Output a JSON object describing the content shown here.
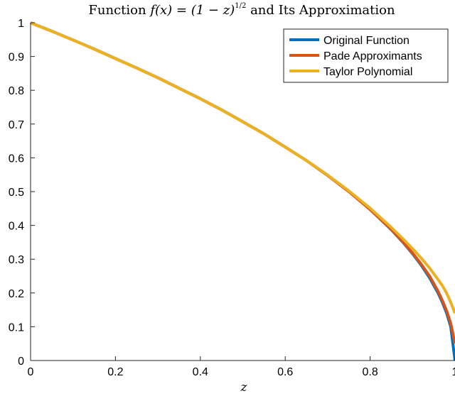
{
  "chart_data": {
    "type": "line",
    "title": "Function f(x) = (1 − z)^(1/2) and Its Approximation",
    "title_parts": {
      "prefix": "Function ",
      "math": "f(x) = (1 − z)",
      "exp_num": "1",
      "exp_den": "2",
      "suffix": " and Its Approximation"
    },
    "xlabel": "z",
    "ylabel": "",
    "xlim": [
      0,
      1
    ],
    "ylim": [
      0,
      1
    ],
    "x_ticks": [
      0,
      0.2,
      0.4,
      0.6,
      0.8,
      1
    ],
    "x_tick_labels": [
      "0",
      "0.2",
      "0.4",
      "0.6",
      "0.8",
      "1"
    ],
    "y_ticks": [
      0,
      0.1,
      0.2,
      0.3,
      0.4,
      0.5,
      0.6,
      0.7,
      0.8,
      0.9,
      1
    ],
    "y_tick_labels": [
      "0",
      "0.1",
      "0.2",
      "0.3",
      "0.4",
      "0.5",
      "0.6",
      "0.7",
      "0.8",
      "0.9",
      "1"
    ],
    "grid": false,
    "legend": "top-right",
    "x": [
      0,
      0.05,
      0.1,
      0.15,
      0.2,
      0.25,
      0.3,
      0.35,
      0.4,
      0.45,
      0.5,
      0.55,
      0.6,
      0.65,
      0.7,
      0.75,
      0.8,
      0.85,
      0.88,
      0.9,
      0.92,
      0.94,
      0.96,
      0.97,
      0.98,
      0.99,
      1.0
    ],
    "series": [
      {
        "name": "Original Function",
        "color": "#0072BD",
        "values": [
          1.0,
          0.975,
          0.949,
          0.922,
          0.894,
          0.866,
          0.837,
          0.806,
          0.775,
          0.742,
          0.707,
          0.671,
          0.632,
          0.592,
          0.548,
          0.5,
          0.447,
          0.387,
          0.346,
          0.316,
          0.283,
          0.245,
          0.2,
          0.173,
          0.141,
          0.1,
          0.0
        ]
      },
      {
        "name": "Pade Approximants",
        "color": "#D95319",
        "values": [
          1.0,
          0.975,
          0.949,
          0.922,
          0.894,
          0.866,
          0.837,
          0.806,
          0.775,
          0.742,
          0.707,
          0.671,
          0.632,
          0.592,
          0.548,
          0.5,
          0.447,
          0.388,
          0.347,
          0.318,
          0.286,
          0.25,
          0.205,
          0.178,
          0.148,
          0.11,
          0.05
        ]
      },
      {
        "name": "Taylor Polynomial",
        "color": "#EDB120",
        "values": [
          1.0,
          0.975,
          0.949,
          0.922,
          0.894,
          0.866,
          0.837,
          0.806,
          0.775,
          0.742,
          0.707,
          0.671,
          0.632,
          0.592,
          0.549,
          0.502,
          0.451,
          0.394,
          0.357,
          0.331,
          0.304,
          0.274,
          0.24,
          0.222,
          0.2,
          0.172,
          0.14
        ]
      }
    ]
  }
}
